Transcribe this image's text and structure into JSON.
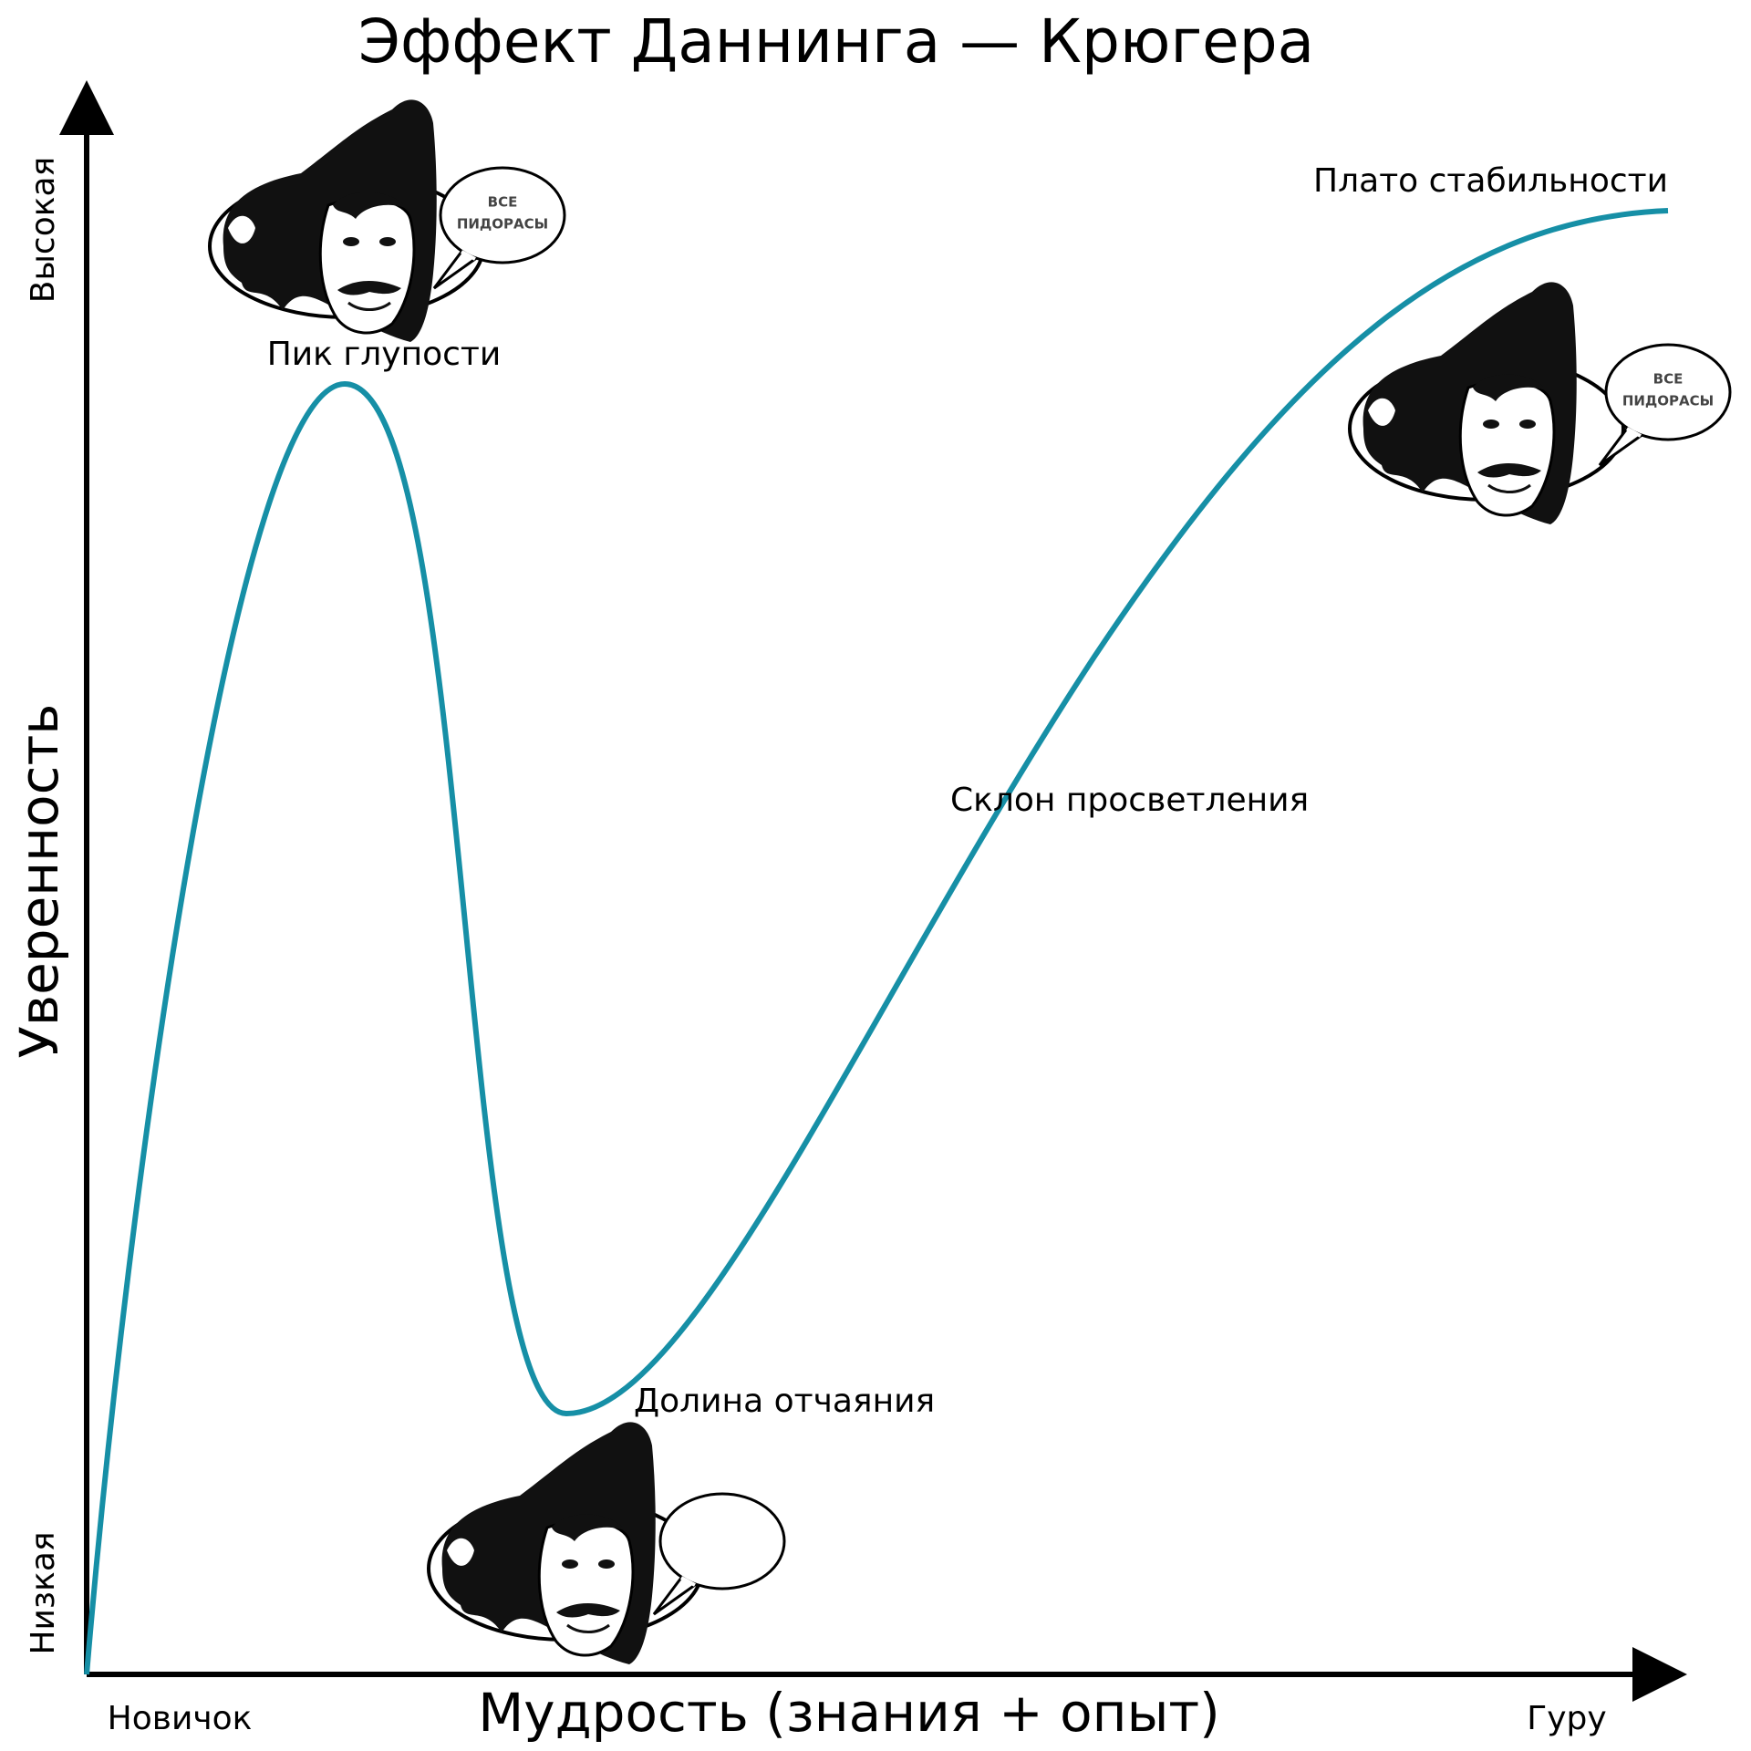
{
  "title": "Эффект Даннинга — Крюгера",
  "axes": {
    "y_label": "Уверенность",
    "y_high": "Высокая",
    "y_low": "Низкая",
    "x_label": "Мудрость (знания + опыт)",
    "x_low": "Новичок",
    "x_high": "Гуру"
  },
  "annotations": {
    "peak": "Пик глупости",
    "valley": "Долина отчаяния",
    "slope": "Склон просветления",
    "plateau": "Плато стабильности"
  },
  "speech_bubbles": [
    {
      "lines": [
        "ВСЕ",
        "ПИДОРАСЫ"
      ]
    },
    {
      "lines": [
        "ВСЕ",
        "ПИДОРАСЫ"
      ]
    }
  ]
}
